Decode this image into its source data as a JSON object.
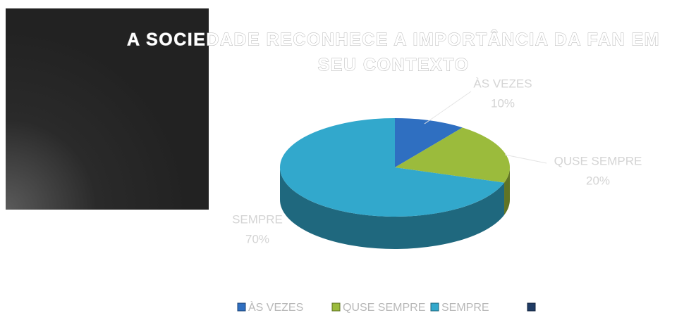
{
  "chart_data": {
    "type": "pie3d",
    "title": [
      "A SOCIEDADE RECONHECE A IMPORTÂNCIA DA FAN EM",
      "SEU CONTEXTO"
    ],
    "categories": [
      "ÀS VEZES",
      "QUSE SEMPRE",
      "SEMPRE",
      null
    ],
    "values": [
      10,
      20,
      70,
      0
    ],
    "value_labels": [
      "10%",
      "20%",
      "70%",
      null
    ],
    "colors": [
      "#2f6fc1",
      "#9bbb3c",
      "#32a8cc",
      "#1f3b64"
    ],
    "legend": "bottom"
  }
}
